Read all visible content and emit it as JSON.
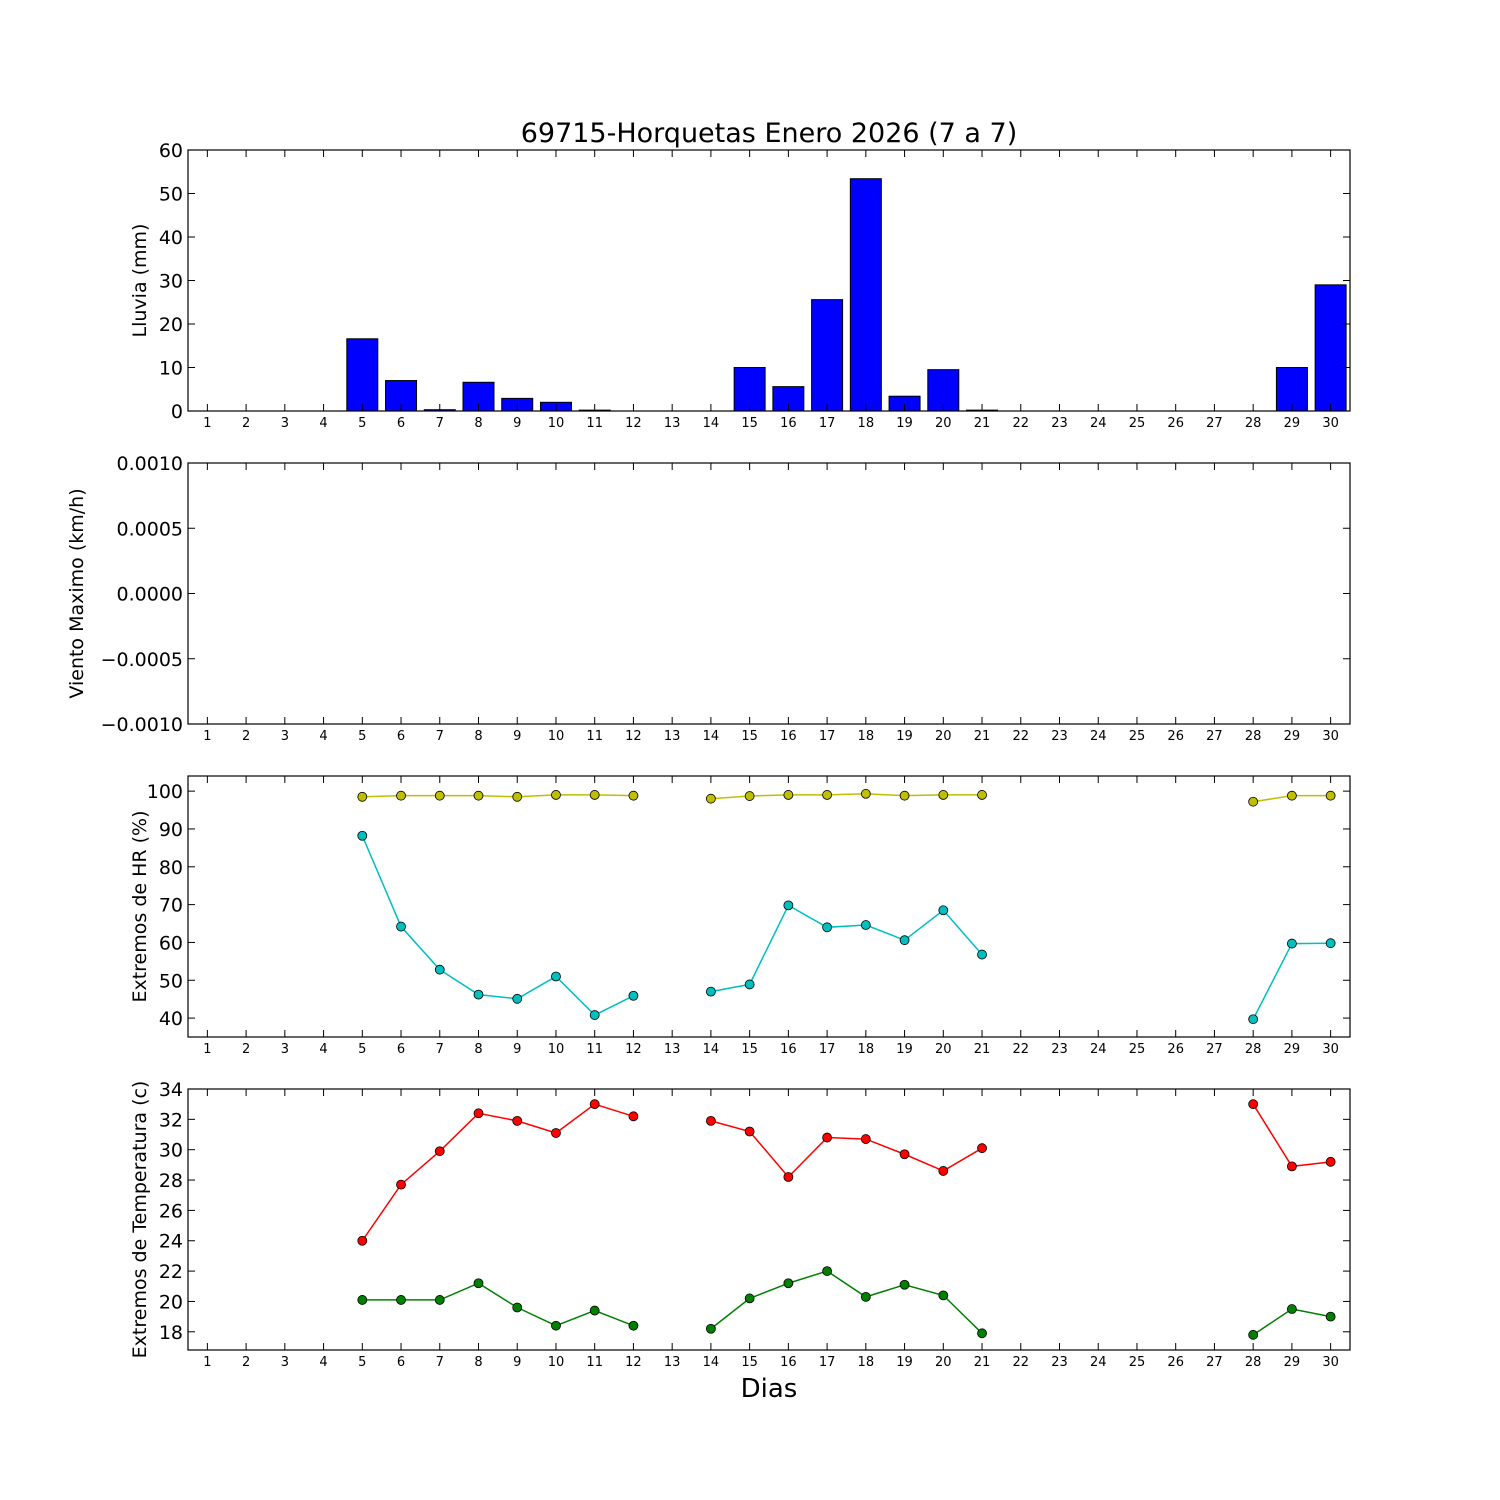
{
  "title": "69715-Horquetas Enero 2026  (7 a 7)",
  "xlabel": "Dias",
  "colors": {
    "rain": "#0000ff",
    "hr_max": "#bfbf00",
    "hr_min": "#00bfbf",
    "temp_max": "#ff0000",
    "temp_min": "#008000"
  },
  "chart_data": [
    {
      "type": "bar",
      "ylabel": "Lluvia (mm)",
      "ylim": [
        0,
        60
      ],
      "yticks": [
        "0",
        "10",
        "20",
        "30",
        "40",
        "50",
        "60"
      ],
      "xlim": [
        0.5,
        30.5
      ],
      "categories": [
        "1",
        "2",
        "3",
        "4",
        "5",
        "6",
        "7",
        "8",
        "9",
        "10",
        "11",
        "12",
        "13",
        "14",
        "15",
        "16",
        "17",
        "18",
        "19",
        "20",
        "21",
        "22",
        "23",
        "24",
        "25",
        "26",
        "27",
        "28",
        "29",
        "30"
      ],
      "series": [
        {
          "values": [
            0,
            0,
            0,
            0,
            16.6,
            7.0,
            0.3,
            6.6,
            2.9,
            2.0,
            0.2,
            0,
            0,
            0,
            10.0,
            5.6,
            25.6,
            53.4,
            3.4,
            9.5,
            0.2,
            0,
            0,
            0,
            0,
            0,
            0,
            0,
            10.0,
            29.0
          ]
        }
      ]
    },
    {
      "type": "line",
      "ylabel": "Viento Maximo (km/h)",
      "ylim": [
        -0.001,
        0.001
      ],
      "yticks": [
        "−0.0010",
        "−0.0005",
        "0.0000",
        "0.0005",
        "0.0010"
      ],
      "xlim": [
        0.5,
        30.5
      ],
      "categories": [
        "1",
        "2",
        "3",
        "4",
        "5",
        "6",
        "7",
        "8",
        "9",
        "10",
        "11",
        "12",
        "13",
        "14",
        "15",
        "16",
        "17",
        "18",
        "19",
        "20",
        "21",
        "22",
        "23",
        "24",
        "25",
        "26",
        "27",
        "28",
        "29",
        "30"
      ],
      "series": []
    },
    {
      "type": "line",
      "ylabel": "Extremos de HR (%)",
      "ylim": [
        35,
        104
      ],
      "yticks": [
        "40",
        "50",
        "60",
        "70",
        "80",
        "90",
        "100"
      ],
      "xlim": [
        0.5,
        30.5
      ],
      "categories": [
        "1",
        "2",
        "3",
        "4",
        "5",
        "6",
        "7",
        "8",
        "9",
        "10",
        "11",
        "12",
        "13",
        "14",
        "15",
        "16",
        "17",
        "18",
        "19",
        "20",
        "21",
        "22",
        "23",
        "24",
        "25",
        "26",
        "27",
        "28",
        "29",
        "30"
      ],
      "series": [
        {
          "values": [
            null,
            null,
            null,
            null,
            98.5,
            98.8,
            98.8,
            98.8,
            98.5,
            99.0,
            99.0,
            98.8,
            null,
            98.0,
            98.7,
            99.0,
            99.0,
            99.3,
            98.8,
            99.0,
            99.0,
            null,
            null,
            null,
            null,
            null,
            null,
            97.2,
            98.8,
            98.8
          ]
        },
        {
          "values": [
            null,
            null,
            null,
            null,
            88.2,
            64.2,
            52.8,
            46.2,
            45.1,
            51.0,
            40.8,
            45.9,
            null,
            47.0,
            48.9,
            69.8,
            64.0,
            64.6,
            60.6,
            68.5,
            56.8,
            null,
            null,
            null,
            null,
            null,
            null,
            39.7,
            59.7,
            59.8
          ]
        }
      ]
    },
    {
      "type": "line",
      "ylabel": "Extremos de Temperatura (c)",
      "ylim": [
        16.8,
        34
      ],
      "yticks": [
        "18",
        "20",
        "22",
        "24",
        "26",
        "28",
        "30",
        "32",
        "34"
      ],
      "xlim": [
        0.5,
        30.5
      ],
      "categories": [
        "1",
        "2",
        "3",
        "4",
        "5",
        "6",
        "7",
        "8",
        "9",
        "10",
        "11",
        "12",
        "13",
        "14",
        "15",
        "16",
        "17",
        "18",
        "19",
        "20",
        "21",
        "22",
        "23",
        "24",
        "25",
        "26",
        "27",
        "28",
        "29",
        "30"
      ],
      "series": [
        {
          "values": [
            null,
            null,
            null,
            null,
            24.0,
            27.7,
            29.9,
            32.4,
            31.9,
            31.1,
            33.0,
            32.2,
            null,
            31.9,
            31.2,
            28.2,
            30.8,
            30.7,
            29.7,
            28.6,
            30.1,
            null,
            null,
            null,
            null,
            null,
            null,
            33.0,
            28.9,
            29.2
          ]
        },
        {
          "values": [
            null,
            null,
            null,
            null,
            20.1,
            20.1,
            20.1,
            21.2,
            19.6,
            18.4,
            19.4,
            18.4,
            null,
            18.2,
            20.2,
            21.2,
            22.0,
            20.3,
            21.1,
            20.4,
            17.9,
            null,
            null,
            null,
            null,
            null,
            null,
            17.8,
            19.5,
            19.0
          ]
        }
      ]
    }
  ]
}
